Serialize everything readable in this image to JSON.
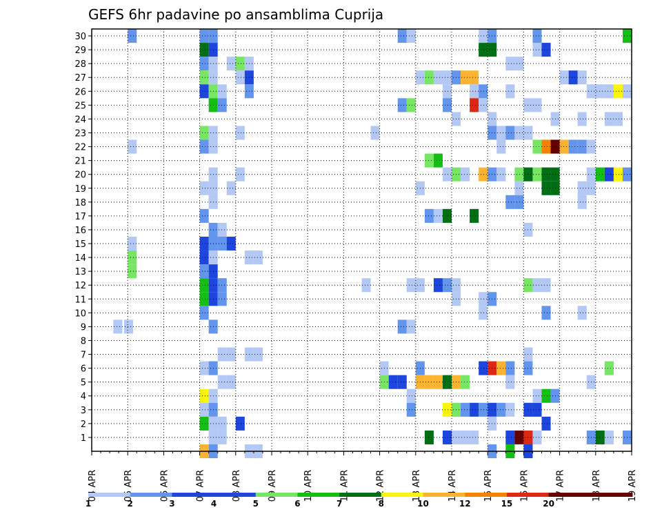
{
  "chart_data": {
    "type": "heatmap",
    "title": "GEFS 6hr padavine po ansamblima Cuprija",
    "xlabel": "",
    "ylabel": "",
    "x_tick_labels": [
      "04 APR",
      "05 APR",
      "06 APR",
      "07 APR",
      "08 APR",
      "09 APR",
      "10 APR",
      "11 APR",
      "12 APR",
      "13 APR",
      "14 APR",
      "15 APR",
      "16 APR",
      "17 APR",
      "18 APR",
      "19 APR"
    ],
    "y_tick_labels": [
      "1",
      "2",
      "3",
      "4",
      "5",
      "6",
      "7",
      "8",
      "9",
      "10",
      "11",
      "12",
      "13",
      "14",
      "15",
      "16",
      "17",
      "18",
      "19",
      "20",
      "21",
      "22",
      "23",
      "24",
      "25",
      "26",
      "27",
      "28",
      "29",
      "30"
    ],
    "members": [
      0,
      30
    ],
    "time_steps_per_day": 4,
    "days": 15,
    "grid": true,
    "legend_position": "bottom",
    "legend": {
      "labels": [
        "1",
        "2",
        "3",
        "4",
        "5",
        "6",
        "7",
        "8",
        "10",
        "12",
        "15",
        "20"
      ],
      "colors": [
        "#b4c8f5",
        "#6495ed",
        "#1e46dc",
        "#1e46dc",
        "#78e664",
        "#14be14",
        "#006e14",
        "#faf50a",
        "#fab432",
        "#f58200",
        "#dc2814",
        "#640000",
        "#640000"
      ]
    },
    "cells": [
      {
        "d": 1,
        "r": 30,
        "c": 2
      },
      {
        "d": 1,
        "r": 14,
        "c": 5
      },
      {
        "d": 1,
        "r": 13,
        "c": 5
      },
      {
        "d": 1,
        "r": 22,
        "c": 1
      },
      {
        "d": 1,
        "r": 15,
        "c": 1
      },
      {
        "d": 0.6,
        "r": 9,
        "c": 1
      },
      {
        "d": 0.9,
        "r": 9,
        "c": 1
      },
      {
        "d": 3,
        "r": 30,
        "c": 2
      },
      {
        "d": 3.25,
        "r": 30,
        "c": 2
      },
      {
        "d": 3,
        "r": 29,
        "c": 7
      },
      {
        "d": 3.25,
        "r": 29,
        "c": 3
      },
      {
        "d": 3,
        "r": 28,
        "c": 2
      },
      {
        "d": 3.25,
        "r": 28,
        "c": 1
      },
      {
        "d": 3,
        "r": 27,
        "c": 5
      },
      {
        "d": 3.25,
        "r": 27,
        "c": 1
      },
      {
        "d": 3,
        "r": 26,
        "c": 3
      },
      {
        "d": 3.25,
        "r": 26,
        "c": 5
      },
      {
        "d": 3.5,
        "r": 26,
        "c": 1
      },
      {
        "d": 3.25,
        "r": 25,
        "c": 6
      },
      {
        "d": 3.5,
        "r": 25,
        "c": 2
      },
      {
        "d": 3,
        "r": 23,
        "c": 5
      },
      {
        "d": 3.25,
        "r": 23,
        "c": 1
      },
      {
        "d": 3,
        "r": 22,
        "c": 2
      },
      {
        "d": 3.25,
        "r": 22,
        "c": 1
      },
      {
        "d": 3.25,
        "r": 20,
        "c": 1
      },
      {
        "d": 3.25,
        "r": 19,
        "c": 1
      },
      {
        "d": 3,
        "r": 19,
        "c": 1
      },
      {
        "d": 3.25,
        "r": 18,
        "c": 1
      },
      {
        "d": 3,
        "r": 17,
        "c": 2
      },
      {
        "d": 3.25,
        "r": 16,
        "c": 2
      },
      {
        "d": 3.5,
        "r": 16,
        "c": 1
      },
      {
        "d": 3.25,
        "r": 15,
        "c": 1
      },
      {
        "d": 3.5,
        "r": 15,
        "c": 1
      },
      {
        "d": 3,
        "r": 15,
        "c": 3
      },
      {
        "d": 3.25,
        "r": 15,
        "c": 2
      },
      {
        "d": 3.5,
        "r": 15,
        "c": 2
      },
      {
        "d": 3.75,
        "r": 15,
        "c": 3
      },
      {
        "d": 3,
        "r": 14,
        "c": 3
      },
      {
        "d": 3.25,
        "r": 14,
        "c": 1
      },
      {
        "d": 3,
        "r": 13,
        "c": 2
      },
      {
        "d": 3.25,
        "r": 13,
        "c": 3
      },
      {
        "d": 3,
        "r": 12,
        "c": 6
      },
      {
        "d": 3.25,
        "r": 12,
        "c": 3
      },
      {
        "d": 3.5,
        "r": 12,
        "c": 2
      },
      {
        "d": 3,
        "r": 11,
        "c": 6
      },
      {
        "d": 3.25,
        "r": 11,
        "c": 3
      },
      {
        "d": 3.5,
        "r": 11,
        "c": 2
      },
      {
        "d": 3,
        "r": 10,
        "c": 2
      },
      {
        "d": 3.25,
        "r": 9,
        "c": 2
      },
      {
        "d": 3.5,
        "r": 7,
        "c": 1
      },
      {
        "d": 3.75,
        "r": 7,
        "c": 1
      },
      {
        "d": 3,
        "r": 6,
        "c": 1
      },
      {
        "d": 3.25,
        "r": 6,
        "c": 2
      },
      {
        "d": 3.5,
        "r": 5,
        "c": 1
      },
      {
        "d": 3.75,
        "r": 5,
        "c": 1
      },
      {
        "d": 3,
        "r": 4,
        "c": 8
      },
      {
        "d": 3.25,
        "r": 4,
        "c": 1
      },
      {
        "d": 3,
        "r": 3,
        "c": 1
      },
      {
        "d": 3.25,
        "r": 3,
        "c": 2
      },
      {
        "d": 3,
        "r": 2,
        "c": 6
      },
      {
        "d": 3.25,
        "r": 2,
        "c": 1
      },
      {
        "d": 3.5,
        "r": 2,
        "c": 1
      },
      {
        "d": 3.25,
        "r": 1,
        "c": 1
      },
      {
        "d": 3.5,
        "r": 1,
        "c": 1
      },
      {
        "d": 3,
        "r": 0,
        "c": 9
      },
      {
        "d": 3.25,
        "r": 0,
        "c": 2
      },
      {
        "d": 3.75,
        "r": 28,
        "c": 1
      },
      {
        "d": 4,
        "r": 28,
        "c": 5
      },
      {
        "d": 4.25,
        "r": 28,
        "c": 1
      },
      {
        "d": 4,
        "r": 27,
        "c": 1
      },
      {
        "d": 4.25,
        "r": 27,
        "c": 3
      },
      {
        "d": 4.25,
        "r": 26,
        "c": 2
      },
      {
        "d": 4,
        "r": 23,
        "c": 1
      },
      {
        "d": 4,
        "r": 20,
        "c": 1
      },
      {
        "d": 3.75,
        "r": 19,
        "c": 1
      },
      {
        "d": 4.25,
        "r": 14,
        "c": 1
      },
      {
        "d": 4.5,
        "r": 14,
        "c": 1
      },
      {
        "d": 4.25,
        "r": 7,
        "c": 1
      },
      {
        "d": 4.5,
        "r": 7,
        "c": 1
      },
      {
        "d": 4,
        "r": 2,
        "c": 3
      },
      {
        "d": 4.25,
        "r": 0,
        "c": 1
      },
      {
        "d": 4.5,
        "r": 0,
        "c": 1
      },
      {
        "d": 7.75,
        "r": 23,
        "c": 1
      },
      {
        "d": 7.5,
        "r": 12,
        "c": 1
      },
      {
        "d": 8,
        "r": 6,
        "c": 1
      },
      {
        "d": 8,
        "r": 5,
        "c": 5
      },
      {
        "d": 8.25,
        "r": 5,
        "c": 3
      },
      {
        "d": 8.5,
        "r": 30,
        "c": 2
      },
      {
        "d": 8.75,
        "r": 30,
        "c": 1
      },
      {
        "d": 8.5,
        "r": 25,
        "c": 2
      },
      {
        "d": 8.75,
        "r": 25,
        "c": 5
      },
      {
        "d": 8.5,
        "r": 9,
        "c": 2
      },
      {
        "d": 8.75,
        "r": 9,
        "c": 1
      },
      {
        "d": 8.75,
        "r": 4,
        "c": 1
      },
      {
        "d": 8.75,
        "r": 3,
        "c": 2
      },
      {
        "d": 8.75,
        "r": 12,
        "c": 1
      },
      {
        "d": 9,
        "r": 12,
        "c": 1
      },
      {
        "d": 9,
        "r": 27,
        "c": 1
      },
      {
        "d": 9.25,
        "r": 27,
        "c": 5
      },
      {
        "d": 9.5,
        "r": 27,
        "c": 1
      },
      {
        "d": 9.75,
        "r": 27,
        "c": 1
      },
      {
        "d": 10,
        "r": 27,
        "c": 2
      },
      {
        "d": 10.25,
        "r": 27,
        "c": 9
      },
      {
        "d": 9,
        "r": 19,
        "c": 1
      },
      {
        "d": 9,
        "r": 6,
        "c": 2
      },
      {
        "d": 9.25,
        "r": 21,
        "c": 5
      },
      {
        "d": 9.5,
        "r": 21,
        "c": 6
      },
      {
        "d": 8.5,
        "r": 5,
        "c": 3
      },
      {
        "d": 9,
        "r": 5,
        "c": 9
      },
      {
        "d": 9.25,
        "r": 5,
        "c": 9
      },
      {
        "d": 9.5,
        "r": 5,
        "c": 9
      },
      {
        "d": 9.75,
        "r": 5,
        "c": 7
      },
      {
        "d": 10,
        "r": 5,
        "c": 9
      },
      {
        "d": 10.25,
        "r": 5,
        "c": 5
      },
      {
        "d": 9.25,
        "r": 17,
        "c": 2
      },
      {
        "d": 9.5,
        "r": 17,
        "c": 1
      },
      {
        "d": 9.75,
        "r": 17,
        "c": 7
      },
      {
        "d": 9.75,
        "r": 20,
        "c": 1
      },
      {
        "d": 10,
        "r": 20,
        "c": 5
      },
      {
        "d": 10.25,
        "r": 20,
        "c": 1
      },
      {
        "d": 9.5,
        "r": 12,
        "c": 3
      },
      {
        "d": 9.75,
        "r": 12,
        "c": 2
      },
      {
        "d": 10,
        "r": 12,
        "c": 1
      },
      {
        "d": 9.75,
        "r": 26,
        "c": 1
      },
      {
        "d": 9.75,
        "r": 25,
        "c": 2
      },
      {
        "d": 10,
        "r": 24,
        "c": 1
      },
      {
        "d": 9.75,
        "r": 3,
        "c": 8
      },
      {
        "d": 10,
        "r": 3,
        "c": 5
      },
      {
        "d": 10.25,
        "r": 3,
        "c": 2
      },
      {
        "d": 10.5,
        "r": 3,
        "c": 3
      },
      {
        "d": 10.75,
        "r": 3,
        "c": 2
      },
      {
        "d": 11,
        "r": 3,
        "c": 3
      },
      {
        "d": 11.25,
        "r": 3,
        "c": 2
      },
      {
        "d": 11.5,
        "r": 3,
        "c": 1
      },
      {
        "d": 9.25,
        "r": 1,
        "c": 7
      },
      {
        "d": 9.75,
        "r": 1,
        "c": 3
      },
      {
        "d": 10,
        "r": 1,
        "c": 1
      },
      {
        "d": 10.25,
        "r": 1,
        "c": 1
      },
      {
        "d": 10.5,
        "r": 1,
        "c": 1
      },
      {
        "d": 10,
        "r": 11,
        "c": 1
      },
      {
        "d": 10.5,
        "r": 17,
        "c": 7
      },
      {
        "d": 10.5,
        "r": 27,
        "c": 9
      },
      {
        "d": 10.5,
        "r": 26,
        "c": 1
      },
      {
        "d": 10.75,
        "r": 26,
        "c": 2
      },
      {
        "d": 10.5,
        "r": 25,
        "c": 11
      },
      {
        "d": 10.75,
        "r": 25,
        "c": 1
      },
      {
        "d": 10.75,
        "r": 29,
        "c": 7
      },
      {
        "d": 11,
        "r": 29,
        "c": 7
      },
      {
        "d": 10.75,
        "r": 30,
        "c": 1
      },
      {
        "d": 11,
        "r": 30,
        "c": 2
      },
      {
        "d": 10.75,
        "r": 20,
        "c": 9
      },
      {
        "d": 11,
        "r": 20,
        "c": 2
      },
      {
        "d": 10.75,
        "r": 11,
        "c": 1
      },
      {
        "d": 11,
        "r": 11,
        "c": 2
      },
      {
        "d": 10.75,
        "r": 10,
        "c": 1
      },
      {
        "d": 10.75,
        "r": 6,
        "c": 3
      },
      {
        "d": 11,
        "r": 6,
        "c": 11
      },
      {
        "d": 11.25,
        "r": 6,
        "c": 9
      },
      {
        "d": 11.5,
        "r": 6,
        "c": 2
      },
      {
        "d": 11,
        "r": 24,
        "c": 1
      },
      {
        "d": 11,
        "r": 23,
        "c": 2
      },
      {
        "d": 11.25,
        "r": 23,
        "c": 1
      },
      {
        "d": 11.5,
        "r": 23,
        "c": 2
      },
      {
        "d": 11.75,
        "r": 23,
        "c": 1
      },
      {
        "d": 12,
        "r": 23,
        "c": 1
      },
      {
        "d": 11.25,
        "r": 22,
        "c": 1
      },
      {
        "d": 11.25,
        "r": 20,
        "c": 1
      },
      {
        "d": 11.5,
        "r": 26,
        "c": 1
      },
      {
        "d": 11.5,
        "r": 28,
        "c": 1
      },
      {
        "d": 11.75,
        "r": 28,
        "c": 1
      },
      {
        "d": 11.5,
        "r": 18,
        "c": 2
      },
      {
        "d": 11.75,
        "r": 18,
        "c": 2
      },
      {
        "d": 11.5,
        "r": 5,
        "c": 1
      },
      {
        "d": 11.5,
        "r": 1,
        "c": 3
      },
      {
        "d": 11.75,
        "r": 1,
        "c": 12
      },
      {
        "d": 12,
        "r": 1,
        "c": 11
      },
      {
        "d": 12.25,
        "r": 1,
        "c": 1
      },
      {
        "d": 11.5,
        "r": 0,
        "c": 6
      },
      {
        "d": 11,
        "r": 0,
        "c": 2
      },
      {
        "d": 11,
        "r": 2,
        "c": 1
      },
      {
        "d": 11.75,
        "r": 20,
        "c": 5
      },
      {
        "d": 12,
        "r": 20,
        "c": 7
      },
      {
        "d": 12.25,
        "r": 20,
        "c": 5
      },
      {
        "d": 12.5,
        "r": 20,
        "c": 7
      },
      {
        "d": 12.75,
        "r": 20,
        "c": 7
      },
      {
        "d": 11.75,
        "r": 19,
        "c": 1
      },
      {
        "d": 12.5,
        "r": 19,
        "c": 7
      },
      {
        "d": 12.75,
        "r": 19,
        "c": 7
      },
      {
        "d": 12,
        "r": 12,
        "c": 5
      },
      {
        "d": 12.25,
        "r": 12,
        "c": 1
      },
      {
        "d": 12.5,
        "r": 12,
        "c": 1
      },
      {
        "d": 12,
        "r": 16,
        "c": 1
      },
      {
        "d": 12,
        "r": 7,
        "c": 1
      },
      {
        "d": 12,
        "r": 6,
        "c": 2
      },
      {
        "d": 12,
        "r": 3,
        "c": 3
      },
      {
        "d": 12.25,
        "r": 3,
        "c": 3
      },
      {
        "d": 12.25,
        "r": 4,
        "c": 1
      },
      {
        "d": 12.5,
        "r": 4,
        "c": 6
      },
      {
        "d": 12.75,
        "r": 4,
        "c": 2
      },
      {
        "d": 12,
        "r": 0,
        "c": 3
      },
      {
        "d": 12,
        "r": 25,
        "c": 1
      },
      {
        "d": 12.25,
        "r": 25,
        "c": 1
      },
      {
        "d": 12.25,
        "r": 29,
        "c": 1
      },
      {
        "d": 12.25,
        "r": 30,
        "c": 2
      },
      {
        "d": 12.5,
        "r": 29,
        "c": 3
      },
      {
        "d": 12.5,
        "r": 10,
        "c": 2
      },
      {
        "d": 12.5,
        "r": 2,
        "c": 3
      },
      {
        "d": 12.25,
        "r": 22,
        "c": 5
      },
      {
        "d": 12.5,
        "r": 22,
        "c": 10
      },
      {
        "d": 12.75,
        "r": 22,
        "c": 13
      },
      {
        "d": 13,
        "r": 22,
        "c": 9
      },
      {
        "d": 13.25,
        "r": 22,
        "c": 2
      },
      {
        "d": 13.5,
        "r": 22,
        "c": 2
      },
      {
        "d": 13.75,
        "r": 22,
        "c": 1
      },
      {
        "d": 12.75,
        "r": 24,
        "c": 1
      },
      {
        "d": 13,
        "r": 27,
        "c": 1
      },
      {
        "d": 13.25,
        "r": 27,
        "c": 3
      },
      {
        "d": 13.5,
        "r": 27,
        "c": 1
      },
      {
        "d": 13.75,
        "r": 26,
        "c": 1
      },
      {
        "d": 13.5,
        "r": 24,
        "c": 1
      },
      {
        "d": 13.5,
        "r": 10,
        "c": 1
      },
      {
        "d": 13.5,
        "r": 19,
        "c": 1
      },
      {
        "d": 13.75,
        "r": 19,
        "c": 1
      },
      {
        "d": 13.5,
        "r": 18,
        "c": 1
      },
      {
        "d": 13.75,
        "r": 20,
        "c": 1
      },
      {
        "d": 14,
        "r": 20,
        "c": 6
      },
      {
        "d": 14.25,
        "r": 20,
        "c": 3
      },
      {
        "d": 14.5,
        "r": 20,
        "c": 8
      },
      {
        "d": 14.75,
        "r": 20,
        "c": 2
      },
      {
        "d": 13.75,
        "r": 1,
        "c": 2
      },
      {
        "d": 14,
        "r": 1,
        "c": 7
      },
      {
        "d": 14.25,
        "r": 1,
        "c": 1
      },
      {
        "d": 14,
        "r": 26,
        "c": 1
      },
      {
        "d": 14.25,
        "r": 26,
        "c": 1
      },
      {
        "d": 14.5,
        "r": 26,
        "c": 8
      },
      {
        "d": 14.75,
        "r": 26,
        "c": 1
      },
      {
        "d": 14.25,
        "r": 24,
        "c": 1
      },
      {
        "d": 14.5,
        "r": 24,
        "c": 1
      },
      {
        "d": 14.25,
        "r": 6,
        "c": 5
      },
      {
        "d": 13.75,
        "r": 5,
        "c": 1
      },
      {
        "d": 14.75,
        "r": 1,
        "c": 2
      },
      {
        "d": 14.75,
        "r": 30,
        "c": 6
      }
    ]
  }
}
